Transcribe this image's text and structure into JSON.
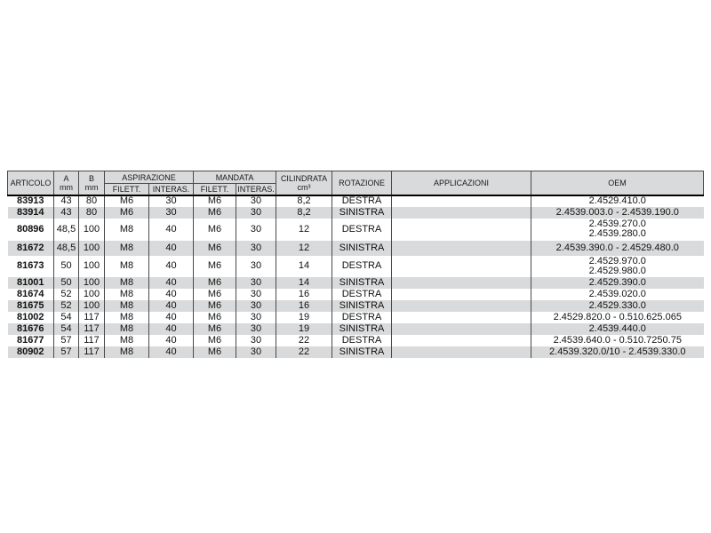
{
  "colors": {
    "stripe": "#d9dadb",
    "header_bg": "#d9dadb",
    "grid_line": "#4a4a4a",
    "heavy_rule": "#000000",
    "text": "#111111"
  },
  "table": {
    "headers": {
      "articolo": "ARTICOLO",
      "a_top": "A",
      "a_bottom": "mm",
      "b_top": "B",
      "b_bottom": "mm",
      "aspirazione": "ASPIRAZIONE",
      "mandata": "MANDATA",
      "filett_asp": "FILETT.",
      "interas_asp": "INTERAS.",
      "filett_man": "FILETT.",
      "interas_man": "INTERAS.",
      "cilindrata_top": "CILINDRATA",
      "cilindrata_bottom": "cm³",
      "rotazione": "ROTAZIONE",
      "applicazioni": "APPLICAZIONI",
      "oem": "OEM"
    },
    "rows": [
      {
        "articolo": "83913",
        "a": "43",
        "b": "80",
        "asp_filett": "M6",
        "asp_interas": "30",
        "man_filett": "M6",
        "man_interas": "30",
        "cilindrata": "8,2",
        "rotazione": "DESTRA",
        "applicazioni": "",
        "oem": [
          "2.4529.410.0"
        ]
      },
      {
        "articolo": "83914",
        "a": "43",
        "b": "80",
        "asp_filett": "M6",
        "asp_interas": "30",
        "man_filett": "M6",
        "man_interas": "30",
        "cilindrata": "8,2",
        "rotazione": "SINISTRA",
        "applicazioni": "",
        "oem": [
          "2.4539.003.0 - 2.4539.190.0"
        ]
      },
      {
        "articolo": "80896",
        "a": "48,5",
        "b": "100",
        "asp_filett": "M8",
        "asp_interas": "40",
        "man_filett": "M6",
        "man_interas": "30",
        "cilindrata": "12",
        "rotazione": "DESTRA",
        "applicazioni": "",
        "oem": [
          "2.4539.270.0",
          "2.4539.280.0"
        ]
      },
      {
        "articolo": "81672",
        "a": "48,5",
        "b": "100",
        "asp_filett": "M8",
        "asp_interas": "40",
        "man_filett": "M6",
        "man_interas": "30",
        "cilindrata": "12",
        "rotazione": "SINISTRA",
        "applicazioni": "",
        "oem": [
          "2.4539.390.0 - 2.4529.480.0"
        ]
      },
      {
        "articolo": "81673",
        "a": "50",
        "b": "100",
        "asp_filett": "M8",
        "asp_interas": "40",
        "man_filett": "M6",
        "man_interas": "30",
        "cilindrata": "14",
        "rotazione": "DESTRA",
        "applicazioni": "",
        "oem": [
          "2.4529.970.0",
          "2.4529.980.0"
        ]
      },
      {
        "articolo": "81001",
        "a": "50",
        "b": "100",
        "asp_filett": "M8",
        "asp_interas": "40",
        "man_filett": "M6",
        "man_interas": "30",
        "cilindrata": "14",
        "rotazione": "SINISTRA",
        "applicazioni": "",
        "oem": [
          "2.4529.390.0"
        ]
      },
      {
        "articolo": "81674",
        "a": "52",
        "b": "100",
        "asp_filett": "M8",
        "asp_interas": "40",
        "man_filett": "M6",
        "man_interas": "30",
        "cilindrata": "16",
        "rotazione": "DESTRA",
        "applicazioni": "",
        "oem": [
          "2.4539.020.0"
        ]
      },
      {
        "articolo": "81675",
        "a": "52",
        "b": "100",
        "asp_filett": "M8",
        "asp_interas": "40",
        "man_filett": "M6",
        "man_interas": "30",
        "cilindrata": "16",
        "rotazione": "SINISTRA",
        "applicazioni": "",
        "oem": [
          "2.4529.330.0"
        ]
      },
      {
        "articolo": "81002",
        "a": "54",
        "b": "117",
        "asp_filett": "M8",
        "asp_interas": "40",
        "man_filett": "M6",
        "man_interas": "30",
        "cilindrata": "19",
        "rotazione": "DESTRA",
        "applicazioni": "",
        "oem": [
          "2.4529.820.0 - 0.510.625.065"
        ]
      },
      {
        "articolo": "81676",
        "a": "54",
        "b": "117",
        "asp_filett": "M8",
        "asp_interas": "40",
        "man_filett": "M6",
        "man_interas": "30",
        "cilindrata": "19",
        "rotazione": "SINISTRA",
        "applicazioni": "",
        "oem": [
          "2.4539.440.0"
        ]
      },
      {
        "articolo": "81677",
        "a": "57",
        "b": "117",
        "asp_filett": "M8",
        "asp_interas": "40",
        "man_filett": "M6",
        "man_interas": "30",
        "cilindrata": "22",
        "rotazione": "DESTRA",
        "applicazioni": "",
        "oem": [
          "2.4539.640.0 - 0.510.7250.75"
        ]
      },
      {
        "articolo": "80902",
        "a": "57",
        "b": "117",
        "asp_filett": "M8",
        "asp_interas": "40",
        "man_filett": "M6",
        "man_interas": "30",
        "cilindrata": "22",
        "rotazione": "SINISTRA",
        "applicazioni": "",
        "oem": [
          "2.4539.320.0/10 - 2.4539.330.0"
        ]
      }
    ]
  }
}
